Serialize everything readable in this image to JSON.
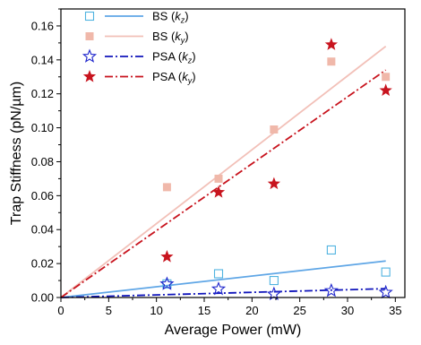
{
  "chart_data": {
    "type": "scatter",
    "xlabel": "Average Power (mW)",
    "ylabel": "Trap Stiffness (pN/µm)",
    "xlim": [
      0,
      36
    ],
    "ylim": [
      0,
      0.17
    ],
    "xticks": [
      0,
      5,
      10,
      15,
      20,
      25,
      30,
      35
    ],
    "yticks": [
      0.0,
      0.02,
      0.04,
      0.06,
      0.08,
      0.1,
      0.12,
      0.14,
      0.16
    ],
    "xtick_labels": [
      "0",
      "5",
      "10",
      "15",
      "20",
      "25",
      "30",
      "35"
    ],
    "ytick_labels": [
      "0.00",
      "0.02",
      "0.04",
      "0.06",
      "0.08",
      "0.10",
      "0.12",
      "0.14",
      "0.16"
    ],
    "grid": false,
    "legend_position": "top-left",
    "series": [
      {
        "name_main": "BS (",
        "name_sub": "z",
        "marker": "open-square",
        "color": "#4fb3e0",
        "x": [
          11.1,
          16.5,
          22.3,
          28.3,
          34.0
        ],
        "y": [
          0.008,
          0.014,
          0.01,
          0.028,
          0.015
        ]
      },
      {
        "name_main": "BS (",
        "name_sub": "y",
        "marker": "filled-square",
        "color": "#f0b8aa",
        "x": [
          11.1,
          16.5,
          22.3,
          28.3,
          34.0
        ],
        "y": [
          0.065,
          0.07,
          0.099,
          0.139,
          0.13
        ]
      },
      {
        "name_main": "PSA (",
        "name_sub": "z",
        "marker": "open-star",
        "color": "#1d24cc",
        "x": [
          11.1,
          16.5,
          22.3,
          28.3,
          34.0
        ],
        "y": [
          0.008,
          0.005,
          0.002,
          0.004,
          0.003
        ]
      },
      {
        "name_main": "PSA (",
        "name_sub": "y",
        "marker": "filled-star",
        "color": "#c8141e",
        "x": [
          11.1,
          16.5,
          22.3,
          28.3,
          34.0
        ],
        "y": [
          0.024,
          0.062,
          0.067,
          0.149,
          0.122
        ]
      }
    ],
    "fits": [
      {
        "series": 0,
        "style": "solid",
        "color": "#5fa6e6",
        "x": [
          0,
          34.0
        ],
        "y": [
          0,
          0.0215
        ]
      },
      {
        "series": 1,
        "style": "solid",
        "color": "#f2c0b8",
        "x": [
          0,
          34.0
        ],
        "y": [
          0,
          0.148
        ]
      },
      {
        "series": 2,
        "style": "dashdot",
        "color": "#1015bb",
        "x": [
          0,
          34.0
        ],
        "y": [
          0,
          0.0052
        ]
      },
      {
        "series": 3,
        "style": "dashdot",
        "color": "#c8141e",
        "x": [
          0,
          34.0
        ],
        "y": [
          0,
          0.134
        ]
      }
    ]
  }
}
